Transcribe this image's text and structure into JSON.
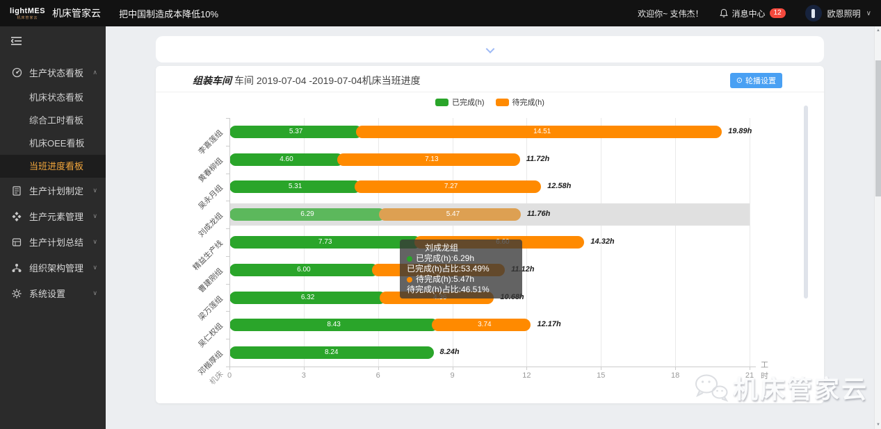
{
  "topbar": {
    "logo_main": "lightMES",
    "logo_sub": "机床管家云",
    "brand": "机床管家云",
    "slogan": "把中国制造成本降低10%",
    "welcome": "欢迎你~ 支伟杰！",
    "message_center": "消息中心",
    "message_badge": "12",
    "company": "欧恩照明"
  },
  "sidebar": {
    "group": {
      "label": "生产状态看板"
    },
    "submenu": [
      {
        "label": "机床状态看板",
        "active": false
      },
      {
        "label": "综合工时看板",
        "active": false
      },
      {
        "label": "机床OEE看板",
        "active": false
      },
      {
        "label": "当班进度看板",
        "active": true
      }
    ],
    "items": [
      {
        "label": "生产计划制定"
      },
      {
        "label": "生产元素管理"
      },
      {
        "label": "生产计划总结"
      },
      {
        "label": "组织架构管理"
      },
      {
        "label": "系统设置"
      }
    ]
  },
  "panel": {
    "title_em": "组装车间",
    "title_rest": "车间 2019-07-04 -2019-07-04机床当班进度",
    "carousel_button": "轮播设置"
  },
  "tooltip": {
    "title": "刘成龙组",
    "lines": [
      {
        "dot": "green",
        "text": "已完成(h):6.29h"
      },
      {
        "dot": null,
        "text": "已完成(h)占比:53.49%"
      },
      {
        "dot": "orange",
        "text": "待完成(h):5.47h"
      },
      {
        "dot": null,
        "text": "待完成(h)占比:46.51%"
      }
    ]
  },
  "watermark": {
    "text": "机床管家云"
  },
  "colors": {
    "green": "#2aa52a",
    "orange": "#ff8a00",
    "green_highlight": "#5cb85c",
    "orange_highlight": "#dda052",
    "accent_blue": "#49a0f3",
    "badge_red": "#f5493d",
    "active_menu": "#f2a63c",
    "highlight_band": "#e0e0e0"
  },
  "chart_data": {
    "type": "bar",
    "orientation": "horizontal",
    "stacked": true,
    "title": "组装车间 车间 2019-07-04 -2019-07-04机床当班进度",
    "categories": [
      "李喜莲组",
      "黄春柳组",
      "吴永月组",
      "刘成龙组",
      "精益生产线",
      "曹建刚组",
      "梁万莲组",
      "吴仁权组",
      "邓楷厚组"
    ],
    "series": [
      {
        "name": "已完成(h)",
        "color": "#2aa52a",
        "values": [
          5.37,
          4.6,
          5.31,
          6.29,
          7.73,
          6.0,
          6.32,
          8.43,
          8.24
        ]
      },
      {
        "name": "待完成(h)",
        "color": "#ff8a00",
        "values": [
          14.51,
          7.13,
          7.27,
          5.47,
          6.6,
          5.12,
          4.36,
          3.74,
          null
        ]
      }
    ],
    "totals": [
      "19.89h",
      "11.72h",
      "12.58h",
      "11.76h",
      "14.32h",
      "11.12h",
      "10.68h",
      "12.17h",
      "8.24h"
    ],
    "x_ticks": [
      0,
      3,
      6,
      9,
      12,
      15,
      18,
      21
    ],
    "xlim": [
      0,
      21
    ],
    "x_unit": "工时",
    "y_unit": "机床",
    "highlighted_index": 3,
    "legend_position": "top-center",
    "grid": true
  }
}
